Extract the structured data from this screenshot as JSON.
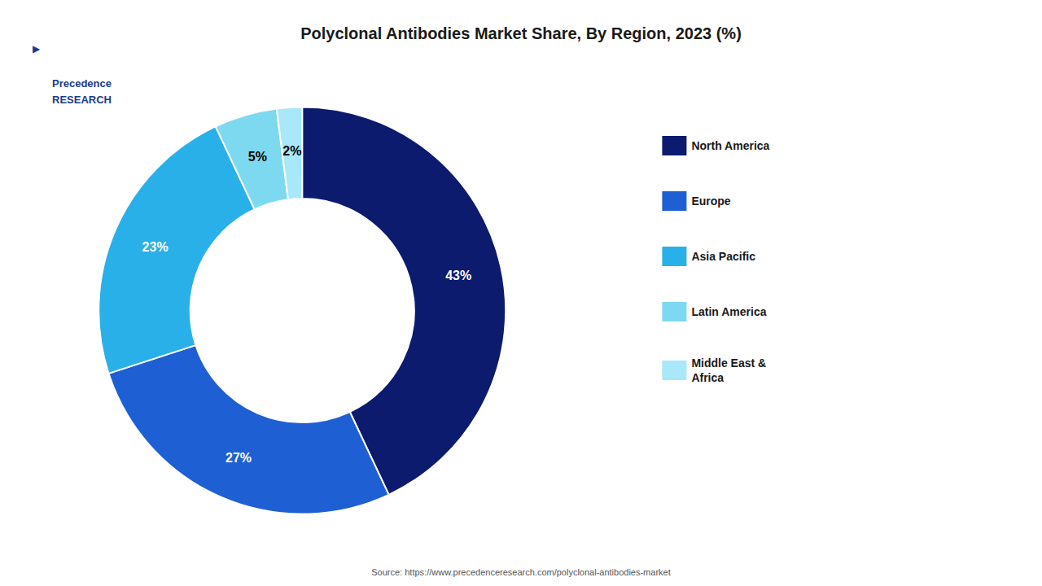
{
  "chart_data": {
    "type": "pie",
    "title": "Polyclonal Antibodies Market Share, By Region, 2023 (%)",
    "categories": [
      "North America",
      "Europe",
      "Asia Pacific",
      "Latin America",
      "Middle East &\nAfrica"
    ],
    "values": [
      43,
      27,
      23,
      5,
      2
    ],
    "value_labels": [
      "43%",
      "27%",
      "23%",
      "5%",
      "2%"
    ],
    "colors": [
      "#0d1b6e",
      "#1e5fd4",
      "#2ab0e8",
      "#7dd9f0",
      "#a8e8f8"
    ],
    "data_labels": true,
    "legend": "right",
    "annotations": [
      "▶",
      "Precedence\nRESEARCH",
      "Source: https://www.precedenceresearch.com/polyclonal-antibodies-market"
    ]
  }
}
